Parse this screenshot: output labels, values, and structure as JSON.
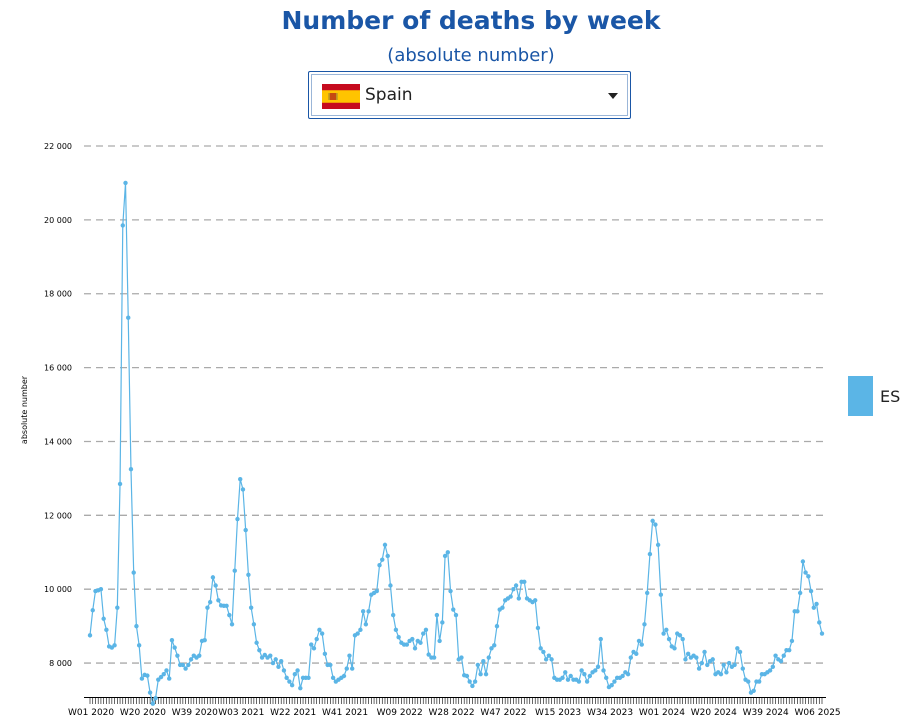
{
  "header": {
    "title": "Number of deaths by week",
    "subtitle": "(absolute number)"
  },
  "country_select": {
    "selected": "Spain",
    "flag_icon": "spain-flag-icon"
  },
  "legend": {
    "label": "ES",
    "color": "#5bb5e6"
  },
  "colors": {
    "title": "#1a56a6",
    "series": "#5bb5e6",
    "grid": "#aaaaaa"
  },
  "chart_data": {
    "type": "line",
    "ylabel": "absolute number",
    "ylim": [
      7000,
      22000
    ],
    "grid": "horizontal dashed",
    "legend_position": "right",
    "y_ticks": [
      8000,
      10000,
      12000,
      14000,
      16000,
      18000,
      20000,
      22000
    ],
    "y_tick_labels": [
      "8 000",
      "10 000",
      "12 000",
      "14 000",
      "16 000",
      "18 000",
      "20 000",
      "22 000"
    ],
    "x_tick_labels": [
      {
        "index": 0,
        "label": "W01 2020"
      },
      {
        "index": 19,
        "label": "W20 2020"
      },
      {
        "index": 38,
        "label": "W39 2020"
      },
      {
        "index": 55,
        "label": "W03 2021"
      },
      {
        "index": 74,
        "label": "W22 2021"
      },
      {
        "index": 93,
        "label": "W41 2021"
      },
      {
        "index": 113,
        "label": "W09 2022"
      },
      {
        "index": 132,
        "label": "W28 2022"
      },
      {
        "index": 151,
        "label": "W47 2022"
      },
      {
        "index": 171,
        "label": "W15 2023"
      },
      {
        "index": 190,
        "label": "W34 2023"
      },
      {
        "index": 209,
        "label": "W01 2024"
      },
      {
        "index": 228,
        "label": "W20 2024"
      },
      {
        "index": 247,
        "label": "W39 2024"
      },
      {
        "index": 266,
        "label": "W06 2025"
      }
    ],
    "series": [
      {
        "name": "ES",
        "values": [
          8750,
          9430,
          9950,
          9970,
          10000,
          9200,
          8900,
          8450,
          8420,
          8480,
          9500,
          12850,
          19850,
          21000,
          17350,
          13250,
          10450,
          9000,
          8480,
          7580,
          7680,
          7660,
          7200,
          6900,
          7050,
          7550,
          7620,
          7700,
          7800,
          7580,
          8620,
          8420,
          8200,
          7950,
          7950,
          7850,
          7950,
          8100,
          8200,
          8150,
          8200,
          8600,
          8620,
          9500,
          9650,
          10320,
          10100,
          9700,
          9560,
          9550,
          9550,
          9300,
          9050,
          10500,
          11900,
          12980,
          12700,
          11600,
          10390,
          9500,
          9050,
          8550,
          8350,
          8150,
          8220,
          8150,
          8200,
          8000,
          8100,
          7900,
          8050,
          7800,
          7600,
          7500,
          7400,
          7700,
          7800,
          7320,
          7600,
          7600,
          7600,
          8500,
          8400,
          8650,
          8900,
          8800,
          8250,
          7950,
          7950,
          7600,
          7500,
          7550,
          7600,
          7650,
          7850,
          8200,
          7850,
          8750,
          8800,
          8900,
          9400,
          9050,
          9400,
          9850,
          9900,
          9950,
          10650,
          10800,
          11200,
          10900,
          10100,
          9300,
          8900,
          8700,
          8550,
          8500,
          8500,
          8600,
          8650,
          8400,
          8600,
          8550,
          8800,
          8900,
          8230,
          8150,
          8150,
          9300,
          8600,
          9100,
          10900,
          11000,
          9950,
          9450,
          9300,
          8100,
          8150,
          7670,
          7650,
          7500,
          7380,
          7500,
          7950,
          7700,
          8050,
          7700,
          8150,
          8400,
          8480,
          9000,
          9450,
          9500,
          9700,
          9750,
          9800,
          10000,
          10100,
          9750,
          10200,
          10200,
          9750,
          9700,
          9650,
          9700,
          8950,
          8400,
          8300,
          8100,
          8200,
          8100,
          7600,
          7550,
          7550,
          7600,
          7750,
          7550,
          7650,
          7550,
          7550,
          7500,
          7800,
          7700,
          7500,
          7650,
          7750,
          7800,
          7900,
          8650,
          7800,
          7600,
          7350,
          7400,
          7500,
          7600,
          7600,
          7650,
          7750,
          7700,
          8150,
          8300,
          8250,
          8600,
          8500,
          9050,
          9900,
          10950,
          11850,
          11750,
          11200,
          9850,
          8800,
          8900,
          8650,
          8450,
          8400,
          8800,
          8750,
          8650,
          8100,
          8250,
          8150,
          8200,
          8150,
          7850,
          8000,
          8300,
          7950,
          8050,
          8100,
          7700,
          7750,
          7700,
          7950,
          7750,
          8000,
          7900,
          7950,
          8400,
          8300,
          7850,
          7550,
          7500,
          7200,
          7250,
          7500,
          7500,
          7700,
          7700,
          7750,
          7800,
          7900,
          8200,
          8100,
          8050,
          8200,
          8350,
          8350,
          8600,
          9400,
          9400,
          9900,
          10750,
          10450,
          10350,
          9950,
          9500,
          9600,
          9100,
          8800
        ]
      }
    ]
  }
}
